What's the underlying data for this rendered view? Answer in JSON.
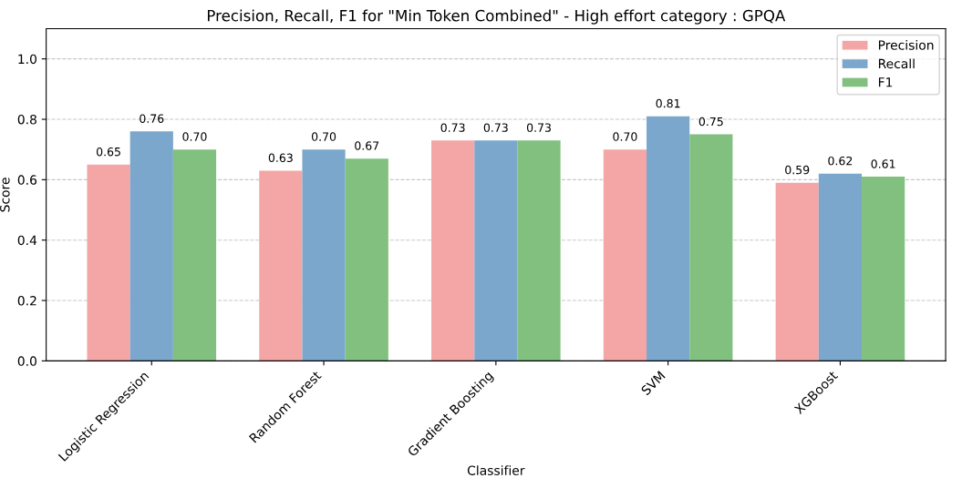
{
  "chart_data": {
    "type": "bar",
    "title": "Precision, Recall, F1 for \"Min Token Combined\" - High effort category : GPQA",
    "xlabel": "Classifier",
    "ylabel": "Score",
    "categories": [
      "Logistic Regression",
      "Random Forest",
      "Gradient Boosting",
      "SVM",
      "XGBoost"
    ],
    "series": [
      {
        "name": "Precision",
        "color": "#f4a6a6",
        "values": [
          0.65,
          0.63,
          0.73,
          0.7,
          0.59
        ],
        "value_labels": [
          "0.65",
          "0.63",
          "0.73",
          "0.70",
          "0.59"
        ]
      },
      {
        "name": "Recall",
        "color": "#7ba7cc",
        "values": [
          0.76,
          0.7,
          0.73,
          0.81,
          0.62
        ],
        "value_labels": [
          "0.76",
          "0.70",
          "0.73",
          "0.81",
          "0.62"
        ]
      },
      {
        "name": "F1",
        "color": "#81c07f",
        "values": [
          0.7,
          0.67,
          0.73,
          0.75,
          0.61
        ],
        "value_labels": [
          "0.70",
          "0.67",
          "0.73",
          "0.75",
          "0.61"
        ]
      }
    ],
    "ylim": [
      0,
      1.1
    ],
    "yticks": [
      {
        "value": 0,
        "label": "0.0"
      },
      0.2,
      0.4,
      0.6,
      0.8,
      {
        "value": 1,
        "label": "1.0"
      }
    ],
    "grid": "y",
    "legend": "top right"
  }
}
